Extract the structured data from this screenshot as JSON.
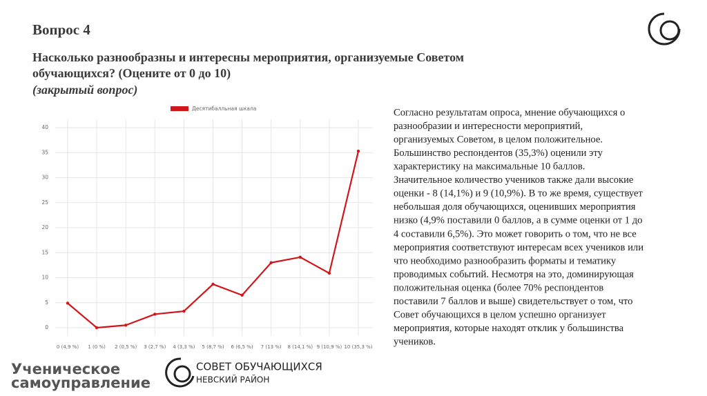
{
  "header": {
    "title": "Вопрос 4",
    "question": [
      "Насколько разнообразны и интересны мероприятия, организуемые Советом",
      "обучающихся? (Оцените от 0 до 10)"
    ],
    "note": "(закрытый вопрос)"
  },
  "chart_data": {
    "type": "line",
    "categories": [
      "0 (4,9 %)",
      "1 (0 %)",
      "2 (0,5 %)",
      "3 (2,7 %)",
      "4 (3,3 %)",
      "5 (8,7 %)",
      "6 (6,5 %)",
      "7 (13 %)",
      "8 (14,1 %)",
      "9 (10,9 %)",
      "10 (35,3 %)"
    ],
    "series": [
      {
        "name": "Десятибалльная шкала",
        "color": "#d0161b",
        "values": [
          4.9,
          0,
          0.5,
          2.7,
          3.3,
          8.7,
          6.5,
          13,
          14.1,
          10.9,
          35.3
        ]
      }
    ],
    "ylim": [
      0,
      40
    ],
    "yticks": [
      0,
      5,
      10,
      15,
      20,
      25,
      30,
      35,
      40
    ],
    "grid": true,
    "legend": "top"
  },
  "body": [
    "Согласно результатам опроса, мнение обучающихся о",
    "разнообразии и интересности мероприятий,",
    "организуемых Советом, в целом положительное.",
    "Большинство респондентов (35,3%) оценили эту",
    "характеристику на максимальные 10 баллов.",
    "Значительное количество учеников также дали высокие",
    "оценки - 8 (14,1%) и 9 (10,9%). В то же время, существует",
    "небольшая доля обучающихся, оценивших мероприятия",
    "низко (4,9% поставили 0 баллов, а в сумме оценки от 1 до",
    "4 составили 6,5%). Это может говорить о том, что не все",
    "мероприятия соответствуют интересам всех учеников или",
    "что необходимо разнообразить форматы и тематику",
    "проводимых событий. Несмотря на это, доминирующая",
    "положительная оценка (более 70% респондентов",
    "поставили 7 баллов и выше) свидетельствует о том, что",
    "Совет обучающихся в целом успешно организует",
    "мероприятия, которые находят отклик у большинства",
    "учеников."
  ],
  "logos": {
    "left": [
      "Ученическое",
      "самоуправление"
    ],
    "center": [
      "СОВЕТ ОБУЧАЮЩИХСЯ",
      "НЕВСКИЙ РАЙОН"
    ]
  }
}
